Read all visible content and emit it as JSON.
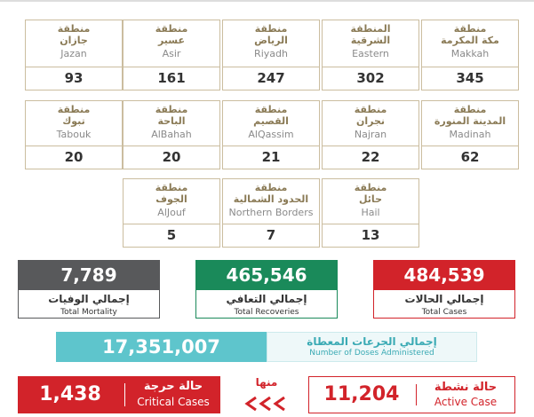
{
  "regions": [
    {
      "ar1": "منطقة",
      "ar2": "مكة المكرمة",
      "en": "Makkah",
      "value": "345"
    },
    {
      "ar1": "المنطقة",
      "ar2": "الشرقية",
      "en": "Eastern",
      "value": "302"
    },
    {
      "ar1": "منطقة",
      "ar2": "الرياض",
      "en": "Riyadh",
      "value": "247"
    },
    {
      "ar1": "منطقة",
      "ar2": "عسير",
      "en": "Asir",
      "value": "161"
    },
    {
      "ar1": "منطقة",
      "ar2": "جازان",
      "en": "Jazan",
      "value": "93"
    },
    {
      "ar1": "منطقة",
      "ar2": "المدينة المنورة",
      "en": "Madinah",
      "value": "62"
    },
    {
      "ar1": "منطقة",
      "ar2": "نجران",
      "en": "Najran",
      "value": "22"
    },
    {
      "ar1": "منطقة",
      "ar2": "القصيم",
      "en": "AlQassim",
      "value": "21"
    },
    {
      "ar1": "منطقة",
      "ar2": "الباحة",
      "en": "AlBahah",
      "value": "20"
    },
    {
      "ar1": "منطقة",
      "ar2": "تبوك",
      "en": "Tabouk",
      "value": "20"
    },
    {
      "ar1": "منطقة",
      "ar2": "حائل",
      "en": "Hail",
      "value": "13"
    },
    {
      "ar1": "منطقة",
      "ar2": "الحدود الشمالية",
      "en": "Northern Borders",
      "value": "7"
    },
    {
      "ar1": "منطقة",
      "ar2": "الجوف",
      "en": "AlJouf",
      "value": "5"
    }
  ],
  "totals": [
    {
      "value": "484,539",
      "ar": "إجمالي الحالات",
      "en": "Total Cases"
    },
    {
      "value": "465,546",
      "ar": "إجمالي التعافي",
      "en": "Total Recoveries"
    },
    {
      "value": "7,789",
      "ar": "إجمالي الوفيات",
      "en": "Total Mortality"
    }
  ],
  "doses": {
    "value": "17,351,007",
    "ar": "إجمالي الجرعات المعطاة",
    "en": "Number of Doses Administered"
  },
  "active": {
    "value": "11,204",
    "ar": "حالة نشطة",
    "en": "Active Case"
  },
  "of_which": "منها",
  "critical": {
    "value": "1,438",
    "ar": "حالة حرجة",
    "en": "Critical Cases"
  }
}
